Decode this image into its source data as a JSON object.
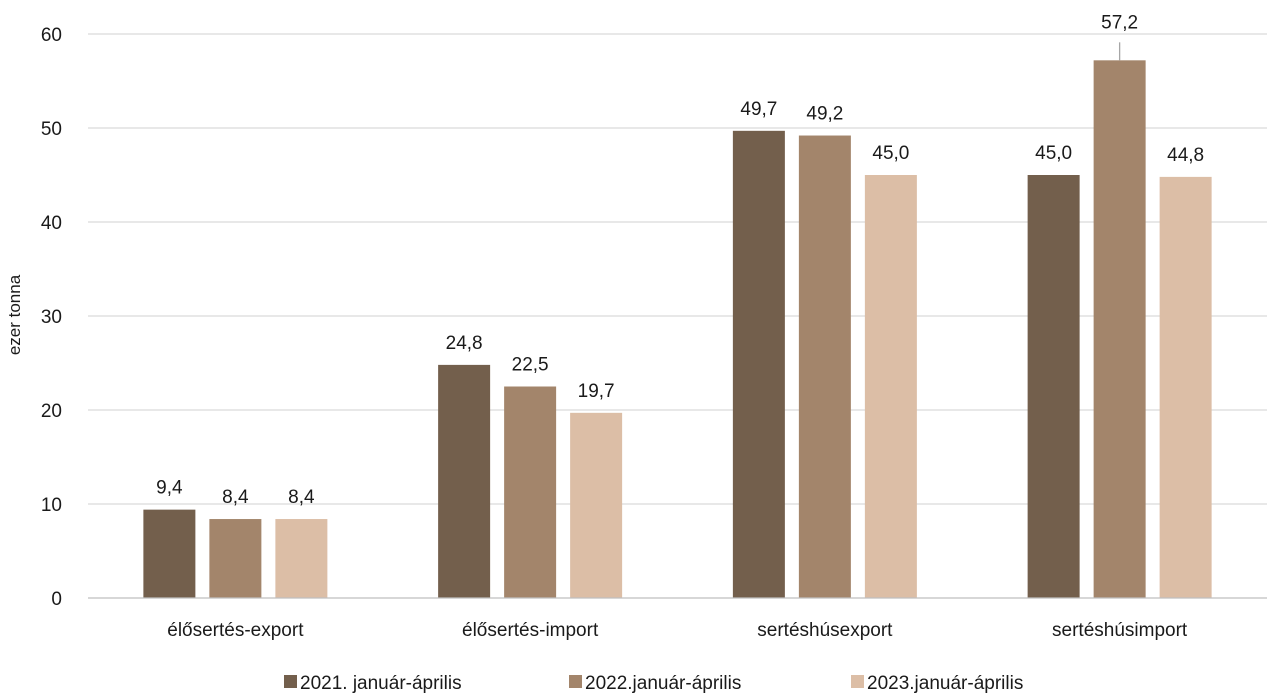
{
  "chart_data": {
    "type": "bar",
    "categories": [
      "élősertés-export",
      "élősertés-import",
      "sertéshúsexport",
      "sertéshúsimport"
    ],
    "series": [
      {
        "name": "2021. január-április",
        "values": [
          9.4,
          24.8,
          49.7,
          45.0
        ],
        "labels": [
          "9,4",
          "24,8",
          "49,7",
          "45,0"
        ],
        "color": "#735f4c"
      },
      {
        "name": "2022.január-április",
        "values": [
          8.4,
          22.5,
          49.2,
          57.2
        ],
        "labels": [
          "8,4",
          "22,5",
          "49,2",
          "57,2"
        ],
        "color": "#a3856b"
      },
      {
        "name": "2023.január-április",
        "values": [
          8.4,
          19.7,
          45.0,
          44.8
        ],
        "labels": [
          "8,4",
          "19,7",
          "45,0",
          "44,8"
        ],
        "color": "#dcbea6"
      }
    ],
    "title": "",
    "xlabel": "",
    "ylabel": "ezer tonna",
    "ylim": [
      0,
      60
    ],
    "yticks": [
      "0",
      "10",
      "20",
      "30",
      "40",
      "50",
      "60"
    ],
    "grid": true,
    "legend_position": "bottom"
  }
}
